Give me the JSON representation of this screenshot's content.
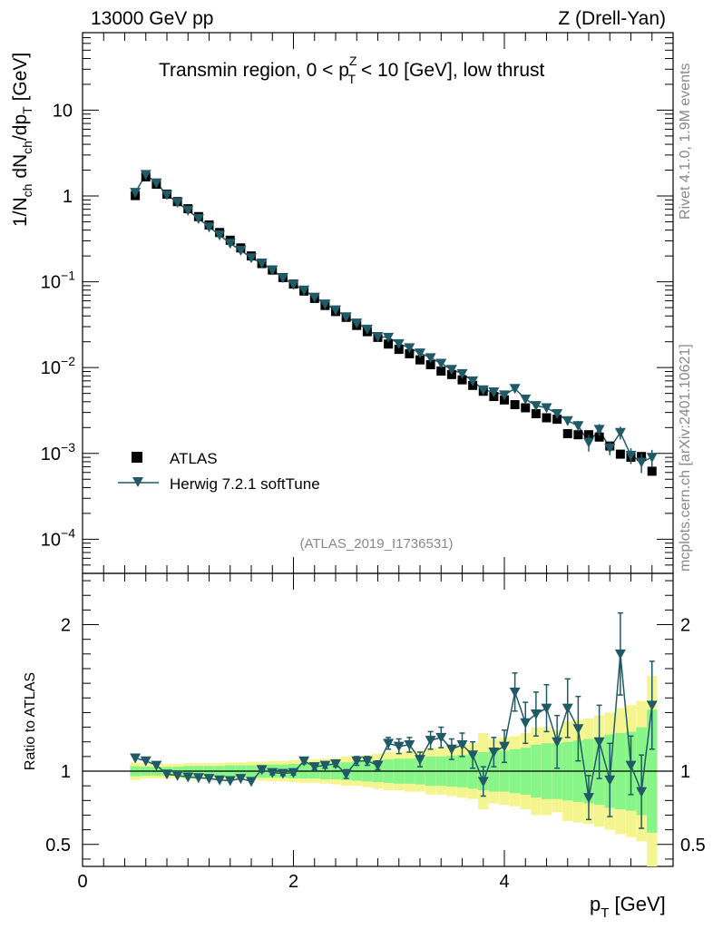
{
  "header": {
    "left": "13000 GeV pp",
    "right": "Z (Drell-Yan)"
  },
  "plot_title": {
    "pre": "Transmin region, 0 < p",
    "sup": "Z",
    "sub": "T",
    "post": " < 10 [GeV], low thrust"
  },
  "side_labels": {
    "rivet": "Rivet 4.1.0,  1.9M events",
    "mcplots": "mcplots.cern.ch [arXiv:2401.10621]"
  },
  "analysis_id": "(ATLAS_2019_I1736531)",
  "colors": {
    "mc": "#1f5a66",
    "band_inner": "#88f588",
    "band_outer": "#f5f590",
    "data": "#000000"
  },
  "chart_data": [
    {
      "type": "scatter",
      "panel": "main",
      "ylabel": "1/N_ch dN_ch/dp_T [GeV]",
      "yscale": "log",
      "ylim": [
        4e-05,
        80
      ],
      "y_ticks": [
        {
          "v": 10,
          "label": "10",
          "exp": ""
        },
        {
          "v": 1,
          "label": "1",
          "exp": ""
        },
        {
          "v": 0.1,
          "label": "10",
          "exp": "−1"
        },
        {
          "v": 0.01,
          "label": "10",
          "exp": "−2"
        },
        {
          "v": 0.001,
          "label": "10",
          "exp": "−3"
        },
        {
          "v": 0.0001,
          "label": "10",
          "exp": "−4"
        }
      ],
      "legend": [
        {
          "name": "ATLAS",
          "marker": "square"
        },
        {
          "name": "Herwig 7.2.1 softTune",
          "marker": "triangle-down"
        }
      ],
      "series": [
        {
          "name": "ATLAS",
          "x": [
            0.5,
            0.6,
            0.7,
            0.8,
            0.9,
            1.0,
            1.1,
            1.2,
            1.3,
            1.4,
            1.5,
            1.6,
            1.7,
            1.8,
            1.9,
            2.0,
            2.1,
            2.2,
            2.3,
            2.4,
            2.5,
            2.6,
            2.7,
            2.8,
            2.9,
            3.0,
            3.1,
            3.2,
            3.3,
            3.4,
            3.5,
            3.6,
            3.7,
            3.8,
            3.9,
            4.0,
            4.1,
            4.2,
            4.3,
            4.4,
            4.5,
            4.6,
            4.7,
            4.8,
            4.9,
            5.0,
            5.1,
            5.2,
            5.3,
            5.4
          ],
          "y": [
            1.01,
            1.67,
            1.37,
            1.05,
            0.86,
            0.71,
            0.575,
            0.46,
            0.375,
            0.305,
            0.248,
            0.2,
            0.163,
            0.137,
            0.112,
            0.094,
            0.078,
            0.064,
            0.053,
            0.045,
            0.0385,
            0.031,
            0.0262,
            0.0225,
            0.0188,
            0.0163,
            0.0145,
            0.0123,
            0.0108,
            0.0091,
            0.0083,
            0.0072,
            0.0062,
            0.0053,
            0.0046,
            0.0042,
            0.0037,
            0.0034,
            0.0029,
            0.0026,
            0.0025,
            0.0017,
            0.00165,
            0.00165,
            0.00155,
            0.00122,
            0.00098,
            0.0009,
            0.00092,
            0.00062
          ]
        },
        {
          "name": "Herwig 7.2.1 softTune",
          "x": [
            0.5,
            0.6,
            0.7,
            0.8,
            0.9,
            1.0,
            1.1,
            1.2,
            1.3,
            1.4,
            1.5,
            1.6,
            1.7,
            1.8,
            1.9,
            2.0,
            2.1,
            2.2,
            2.3,
            2.4,
            2.5,
            2.6,
            2.7,
            2.8,
            2.9,
            3.0,
            3.1,
            3.2,
            3.3,
            3.4,
            3.5,
            3.6,
            3.7,
            3.8,
            3.9,
            4.0,
            4.1,
            4.2,
            4.3,
            4.4,
            4.5,
            4.6,
            4.7,
            4.8,
            4.9,
            5.0,
            5.1,
            5.2,
            5.3,
            5.4
          ],
          "y": [
            1.1,
            1.78,
            1.42,
            1.03,
            0.84,
            0.68,
            0.545,
            0.435,
            0.35,
            0.28,
            0.232,
            0.19,
            0.165,
            0.137,
            0.111,
            0.093,
            0.08,
            0.066,
            0.055,
            0.047,
            0.039,
            0.033,
            0.028,
            0.023,
            0.0225,
            0.019,
            0.017,
            0.0148,
            0.013,
            0.0112,
            0.0095,
            0.0085,
            0.007,
            0.0055,
            0.0052,
            0.0048,
            0.0057,
            0.0043,
            0.0036,
            0.0034,
            0.0029,
            0.0024,
            0.0021,
            0.00135,
            0.0019,
            0.00115,
            0.00175,
            0.00095,
            0.00079,
            0.0009
          ],
          "yerr": [
            0,
            0,
            0,
            0,
            0,
            0,
            0,
            0,
            0,
            0,
            0,
            0,
            0,
            0,
            0,
            0,
            0,
            0,
            0,
            0,
            0,
            0,
            0,
            0,
            0,
            0,
            0,
            0,
            0,
            0,
            0,
            0,
            0,
            0,
            0,
            0,
            0,
            0,
            0,
            0,
            0,
            0,
            0.0003,
            0.0003,
            0.0003,
            0.0002,
            0.0003,
            0.0002,
            0.0002,
            0.0002
          ]
        }
      ]
    },
    {
      "type": "line",
      "panel": "ratio",
      "ylabel": "Ratio to ATLAS",
      "xlabel": "p_T [GeV]",
      "xlim": [
        0,
        5.6
      ],
      "ylim": [
        0.35,
        2.35
      ],
      "x_ticks": [
        0,
        2,
        4
      ],
      "y_ticks": [
        0.5,
        1,
        2
      ],
      "x": [
        0.5,
        0.6,
        0.7,
        0.8,
        0.9,
        1.0,
        1.1,
        1.2,
        1.3,
        1.4,
        1.5,
        1.6,
        1.7,
        1.8,
        1.9,
        2.0,
        2.1,
        2.2,
        2.3,
        2.4,
        2.5,
        2.6,
        2.7,
        2.8,
        2.9,
        3.0,
        3.1,
        3.2,
        3.3,
        3.4,
        3.5,
        3.6,
        3.7,
        3.8,
        3.9,
        4.0,
        4.1,
        4.2,
        4.3,
        4.4,
        4.5,
        4.6,
        4.7,
        4.8,
        4.9,
        5.0,
        5.1,
        5.2,
        5.3,
        5.4
      ],
      "ratio": [
        1.09,
        1.07,
        1.04,
        0.98,
        0.97,
        0.96,
        0.955,
        0.95,
        0.94,
        0.935,
        0.95,
        0.93,
        1.01,
        0.99,
        0.985,
        0.99,
        1.07,
        1.03,
        1.04,
        1.05,
        0.98,
        1.07,
        1.07,
        1.04,
        1.19,
        1.17,
        1.18,
        1.08,
        1.21,
        1.23,
        1.15,
        1.18,
        1.11,
        0.93,
        1.13,
        1.17,
        1.54,
        1.33,
        1.39,
        1.43,
        1.2,
        1.43,
        1.29,
        0.82,
        1.2,
        0.94,
        1.8,
        1.04,
        0.86,
        1.45
      ],
      "ratio_err": [
        0.01,
        0.01,
        0.01,
        0.01,
        0.01,
        0.01,
        0.01,
        0.01,
        0.01,
        0.01,
        0.01,
        0.01,
        0.015,
        0.015,
        0.015,
        0.015,
        0.02,
        0.02,
        0.02,
        0.02,
        0.03,
        0.03,
        0.03,
        0.03,
        0.04,
        0.05,
        0.05,
        0.05,
        0.06,
        0.07,
        0.07,
        0.08,
        0.09,
        0.1,
        0.1,
        0.11,
        0.13,
        0.14,
        0.15,
        0.16,
        0.18,
        0.2,
        0.22,
        0.15,
        0.25,
        0.25,
        0.28,
        0.2,
        0.25,
        0.3
      ],
      "band_inner": [
        0.035,
        0.03,
        0.03,
        0.03,
        0.03,
        0.035,
        0.035,
        0.035,
        0.035,
        0.04,
        0.04,
        0.04,
        0.045,
        0.045,
        0.045,
        0.05,
        0.05,
        0.05,
        0.055,
        0.055,
        0.06,
        0.065,
        0.07,
        0.075,
        0.08,
        0.085,
        0.085,
        0.09,
        0.1,
        0.1,
        0.105,
        0.11,
        0.12,
        0.13,
        0.14,
        0.14,
        0.15,
        0.16,
        0.18,
        0.19,
        0.19,
        0.2,
        0.21,
        0.22,
        0.23,
        0.25,
        0.26,
        0.27,
        0.3,
        0.42
      ],
      "band_outer": [
        0.06,
        0.05,
        0.05,
        0.05,
        0.05,
        0.055,
        0.055,
        0.055,
        0.055,
        0.06,
        0.06,
        0.065,
        0.065,
        0.07,
        0.07,
        0.075,
        0.08,
        0.08,
        0.085,
        0.09,
        0.1,
        0.1,
        0.11,
        0.12,
        0.13,
        0.13,
        0.14,
        0.14,
        0.16,
        0.16,
        0.17,
        0.18,
        0.19,
        0.26,
        0.22,
        0.23,
        0.24,
        0.26,
        0.3,
        0.3,
        0.28,
        0.34,
        0.35,
        0.36,
        0.38,
        0.4,
        0.43,
        0.45,
        0.48,
        0.65
      ]
    }
  ]
}
